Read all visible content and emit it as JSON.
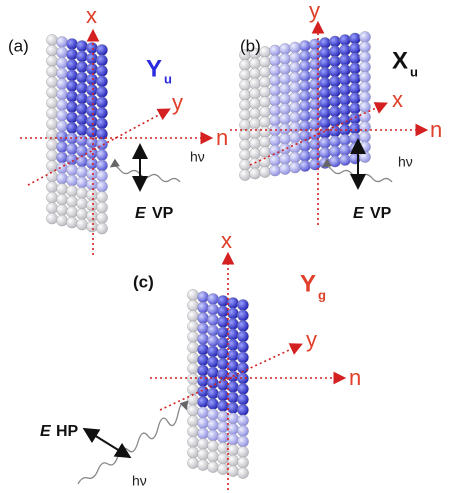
{
  "panels": [
    {
      "label": "(a)",
      "axes": {
        "vertical": "x",
        "diagonal": "y",
        "horizontal": "n"
      },
      "symmetry": {
        "main": "Y",
        "subscript": "u"
      },
      "photon": "hν",
      "polarization": {
        "field": "E",
        "mode": "VP"
      }
    },
    {
      "label": "(b)",
      "axes": {
        "vertical": "y",
        "diagonal": "x",
        "horizontal": "n"
      },
      "symmetry": {
        "main": "X",
        "subscript": "u"
      },
      "photon": "hν",
      "polarization": {
        "field": "E",
        "mode": "VP"
      }
    },
    {
      "label": "(c)",
      "axes": {
        "vertical": "x",
        "diagonal": "y",
        "horizontal": "n"
      },
      "symmetry": {
        "main": "Y",
        "subscript": "g"
      },
      "photon": "hν",
      "polarization": {
        "field": "E",
        "mode": "HP"
      }
    }
  ]
}
